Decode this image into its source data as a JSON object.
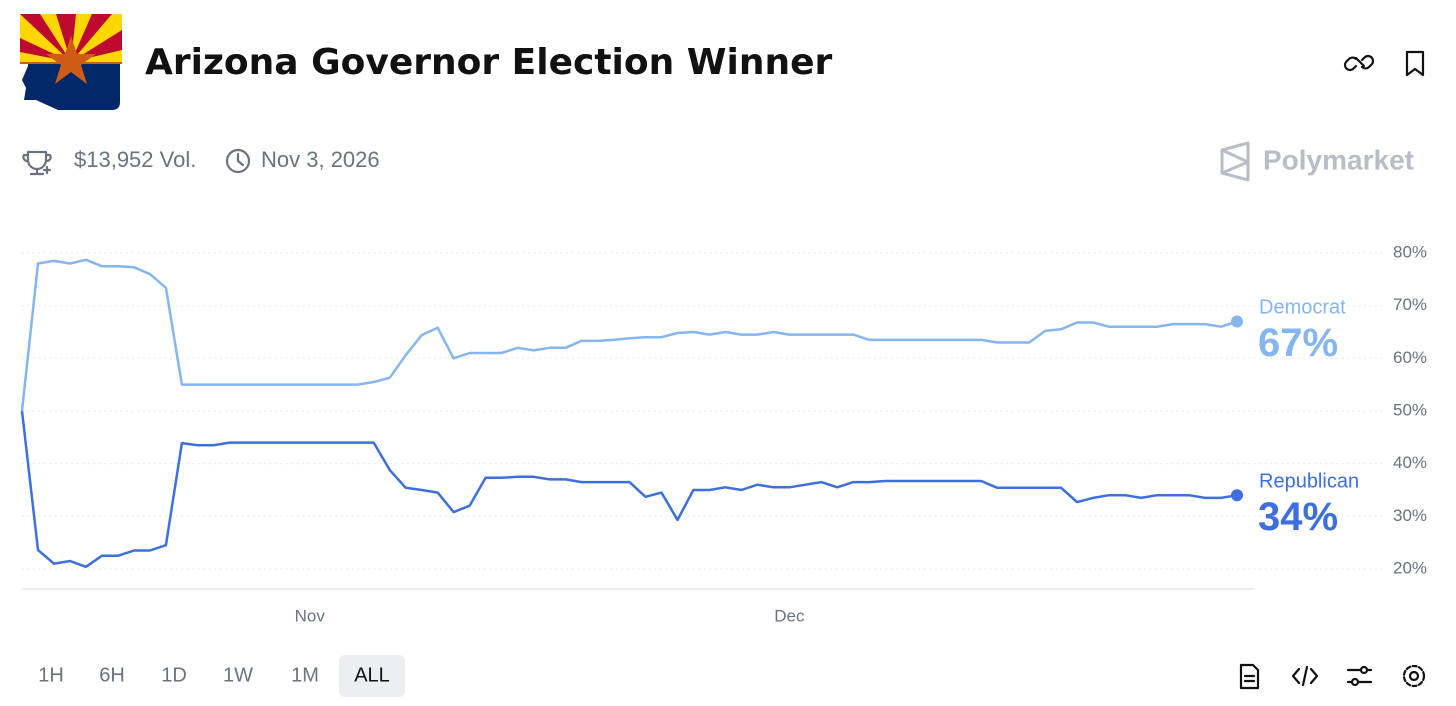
{
  "header": {
    "title": "Arizona Governor Election Winner"
  },
  "meta": {
    "volume": "$13,952 Vol.",
    "end_date": "Nov 3, 2026",
    "brand": "Polymarket"
  },
  "range_buttons": [
    "1H",
    "6H",
    "1D",
    "1W",
    "1M",
    "ALL"
  ],
  "selected_range": "ALL",
  "chart_data": {
    "type": "line",
    "categories": [
      null,
      null,
      null,
      null,
      null,
      null,
      null,
      null,
      null,
      null,
      null,
      null,
      null,
      null,
      null,
      null,
      null,
      null,
      "Nov",
      null,
      null,
      null,
      null,
      null,
      null,
      null,
      null,
      null,
      null,
      null,
      null,
      null,
      null,
      null,
      null,
      null,
      null,
      null,
      null,
      null,
      null,
      null,
      null,
      null,
      null,
      null,
      null,
      null,
      "Dec",
      null,
      null,
      null,
      null,
      null,
      null,
      null,
      null,
      null,
      null,
      null,
      null,
      null,
      null,
      null,
      null,
      null,
      null,
      null,
      null,
      null,
      null,
      null,
      null,
      null,
      null,
      null,
      null
    ],
    "series": [
      {
        "name": "Democrat",
        "color": "#85b6f0",
        "values": [
          50,
          78,
          78.5,
          78,
          78.7,
          77.5,
          77.5,
          77.3,
          76,
          73.4,
          55,
          55,
          55,
          55,
          55,
          55,
          55,
          55,
          55,
          55,
          55,
          55,
          55.5,
          56.3,
          60.6,
          64.4,
          65.8,
          60,
          61,
          61,
          61,
          62,
          61.5,
          62,
          62,
          63.3,
          63.3,
          63.5,
          63.8,
          64,
          64,
          64.8,
          65,
          64.5,
          65,
          64.5,
          64.5,
          65,
          64.5,
          64.5,
          64.5,
          64.5,
          64.5,
          63.5,
          63.5,
          63.5,
          63.5,
          63.5,
          63.5,
          63.5,
          63.5,
          63,
          63,
          63,
          65.2,
          65.5,
          66.8,
          66.8,
          66,
          66,
          66,
          66,
          66.5,
          66.5,
          66.5,
          66,
          67
        ],
        "current": {
          "value": 67,
          "label": "67%"
        }
      },
      {
        "name": "Republican",
        "color": "#3d6fde",
        "values": [
          50,
          23.6,
          21,
          21.5,
          20.4,
          22.5,
          22.5,
          23.5,
          23.5,
          24.5,
          43.9,
          43.5,
          43.5,
          44,
          44,
          44,
          44,
          44,
          44,
          44,
          44,
          44,
          44,
          38.8,
          35.4,
          35,
          34.5,
          30.8,
          32,
          37.3,
          37.3,
          37.5,
          37.5,
          37,
          37,
          36.5,
          36.5,
          36.5,
          36.5,
          33.7,
          34.5,
          29.3,
          35,
          35,
          35.5,
          35,
          36,
          35.5,
          35.5,
          36,
          36.5,
          35.5,
          36.5,
          36.5,
          36.7,
          36.7,
          36.7,
          36.7,
          36.7,
          36.7,
          36.7,
          35.4,
          35.4,
          35.4,
          35.4,
          35.4,
          32.7,
          33.5,
          34,
          34,
          33.5,
          34,
          34,
          34,
          33.5,
          33.5,
          34
        ],
        "current": {
          "value": 34,
          "label": "34%"
        }
      }
    ],
    "ylim": [
      16,
      83
    ],
    "yticks": [
      {
        "value": 20,
        "label": "20%"
      },
      {
        "value": 30,
        "label": "30%"
      },
      {
        "value": 40,
        "label": "40%"
      },
      {
        "value": 50,
        "label": "50%"
      },
      {
        "value": 60,
        "label": "60%"
      },
      {
        "value": 70,
        "label": "70%"
      },
      {
        "value": 80,
        "label": "80%"
      }
    ],
    "grid": true
  }
}
